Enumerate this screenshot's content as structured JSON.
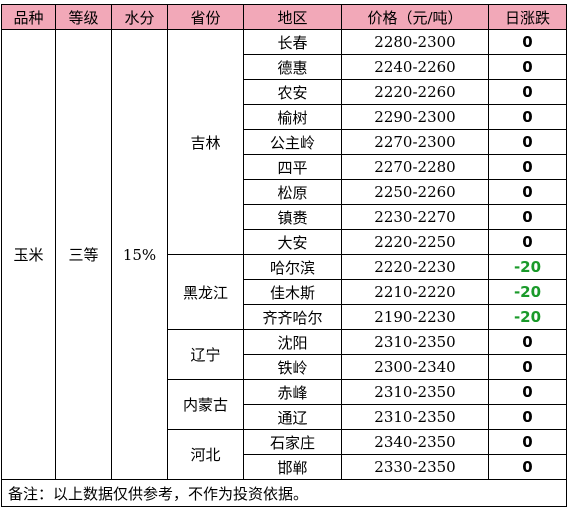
{
  "headers": {
    "variety": "品种",
    "grade": "等级",
    "moisture": "水分",
    "province": "省份",
    "region": "地区",
    "price": "价格（元/吨）",
    "daily_change": "日涨跌"
  },
  "common": {
    "variety": "玉米",
    "grade": "三等",
    "moisture": "15%"
  },
  "provinces": [
    "吉林",
    "黑龙江",
    "辽宁",
    "内蒙古",
    "河北"
  ],
  "rows": [
    {
      "region": "长春",
      "price": "2280-2300",
      "change": "0"
    },
    {
      "region": "德惠",
      "price": "2240-2260",
      "change": "0"
    },
    {
      "region": "农安",
      "price": "2220-2260",
      "change": "0"
    },
    {
      "region": "榆树",
      "price": "2290-2300",
      "change": "0"
    },
    {
      "region": "公主岭",
      "price": "2270-2300",
      "change": "0"
    },
    {
      "region": "四平",
      "price": "2270-2280",
      "change": "0"
    },
    {
      "region": "松原",
      "price": "2250-2260",
      "change": "0"
    },
    {
      "region": "镇赉",
      "price": "2230-2270",
      "change": "0"
    },
    {
      "region": "大安",
      "price": "2220-2250",
      "change": "0"
    },
    {
      "region": "哈尔滨",
      "price": "2220-2230",
      "change": "-20"
    },
    {
      "region": "佳木斯",
      "price": "2210-2220",
      "change": "-20"
    },
    {
      "region": "齐齐哈尔",
      "price": "2190-2230",
      "change": "-20"
    },
    {
      "region": "沈阳",
      "price": "2310-2350",
      "change": "0"
    },
    {
      "region": "铁岭",
      "price": "2300-2340",
      "change": "0"
    },
    {
      "region": "赤峰",
      "price": "2310-2350",
      "change": "0"
    },
    {
      "region": "通辽",
      "price": "2310-2350",
      "change": "0"
    },
    {
      "region": "石家庄",
      "price": "2340-2350",
      "change": "0"
    },
    {
      "region": "邯郸",
      "price": "2330-2350",
      "change": "0"
    }
  ],
  "note": "备注：以上数据仅供参考，不作为投资依据。",
  "colors": {
    "header_bg": "#f2a8b8",
    "negative_change": "#1a9a2a"
  }
}
